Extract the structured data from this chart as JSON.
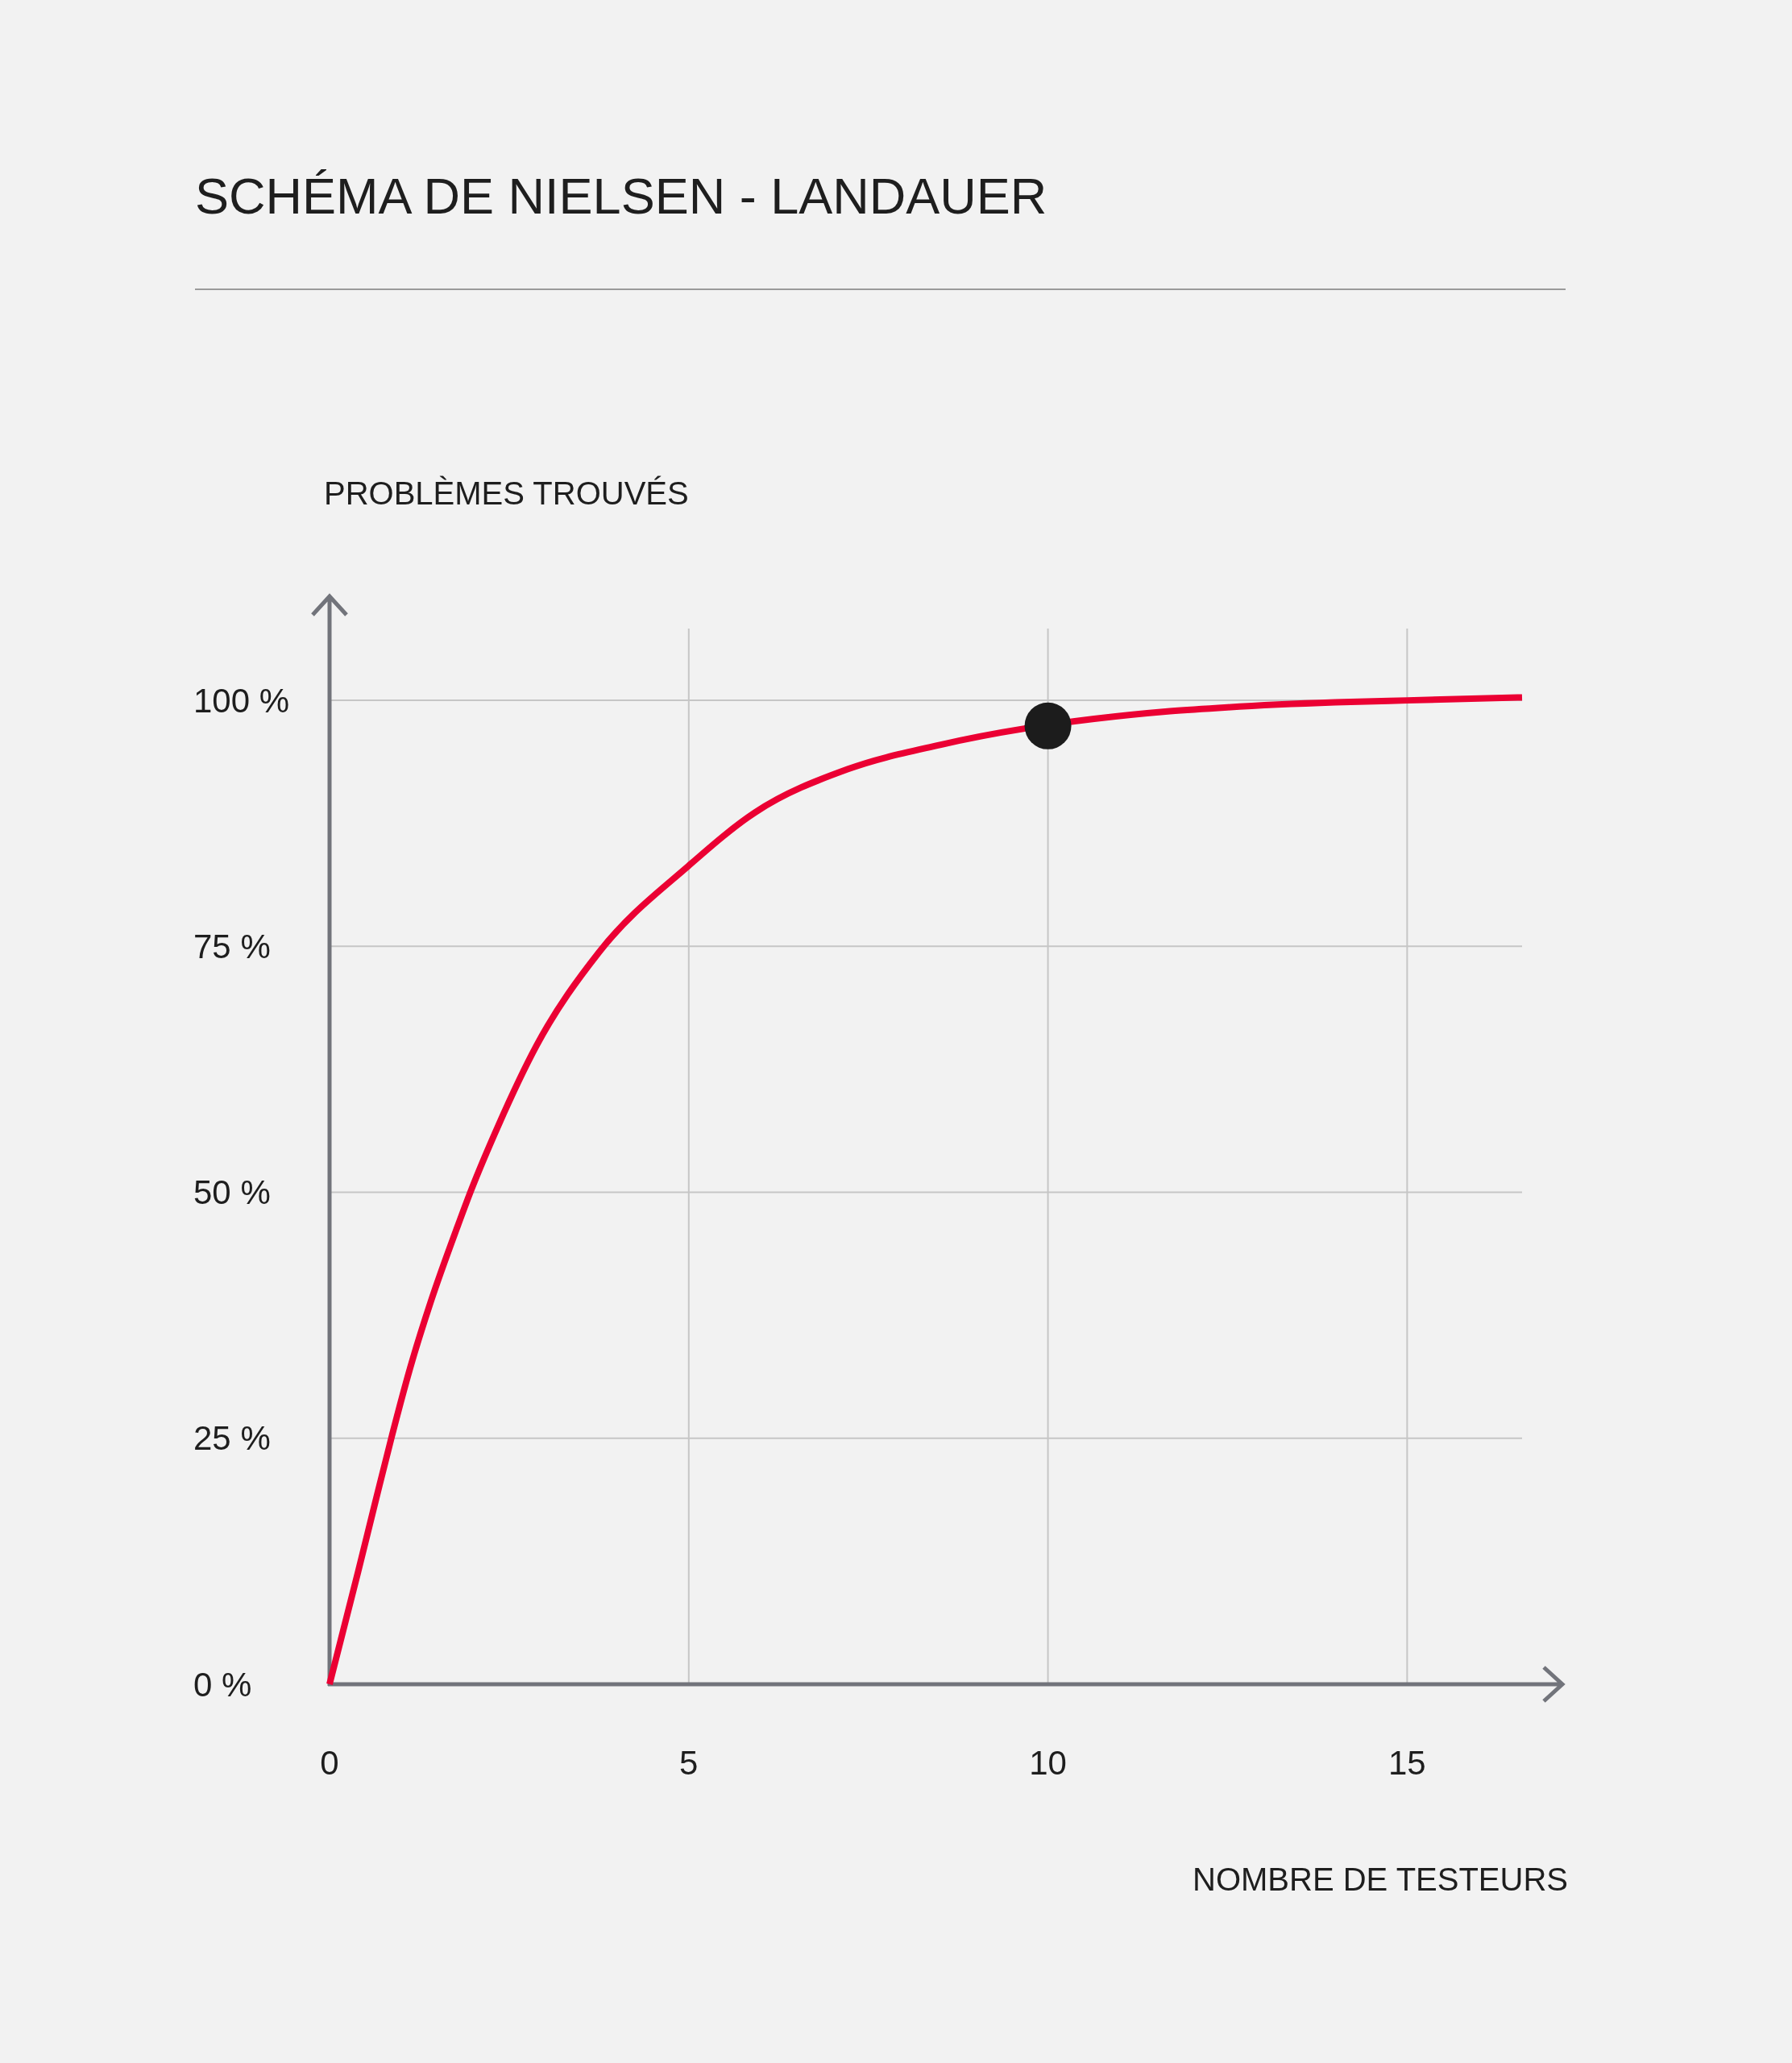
{
  "chart_data": {
    "type": "line",
    "title": "SCHÉMA DE NIELSEN - LANDAUER",
    "xlabel": "NOMBRE DE TESTEURS",
    "ylabel": "PROBLÈMES TROUVÉS",
    "xlim": [
      0,
      16.6
    ],
    "ylim": [
      0,
      107.3
    ],
    "xticks": [
      0,
      5,
      10,
      15
    ],
    "yticks": [
      {
        "value": 0,
        "label": "0 %"
      },
      {
        "value": 25,
        "label": "25 %"
      },
      {
        "value": 50,
        "label": "50 %"
      },
      {
        "value": 75,
        "label": "75 %"
      },
      {
        "value": 100,
        "label": "100 %"
      }
    ],
    "grid": true,
    "series": [
      {
        "type": "line",
        "color": "#eb0033",
        "line_style": "solid",
        "x": [
          0,
          0.4,
          0.65,
          0.87,
          1.12,
          1.41,
          1.77,
          1.97,
          2.35,
          2.88,
          3.75,
          5.0,
          5.92,
          7.21,
          8.51,
          11.7,
          12.5,
          14,
          15,
          16.6
        ],
        "values": [
          0,
          11.5,
          18.9,
          25.3,
          32.1,
          38.9,
          46.3,
          50.2,
          56.8,
          64.9,
          74.4,
          83.2,
          88.6,
          93.0,
          95.5,
          98.9,
          99.3,
          99.8,
          100,
          100.3
        ]
      },
      {
        "type": "scatter",
        "color": "#1c1c1c",
        "marker": "circle",
        "x": [
          10
        ],
        "values": [
          97.4
        ]
      }
    ]
  }
}
